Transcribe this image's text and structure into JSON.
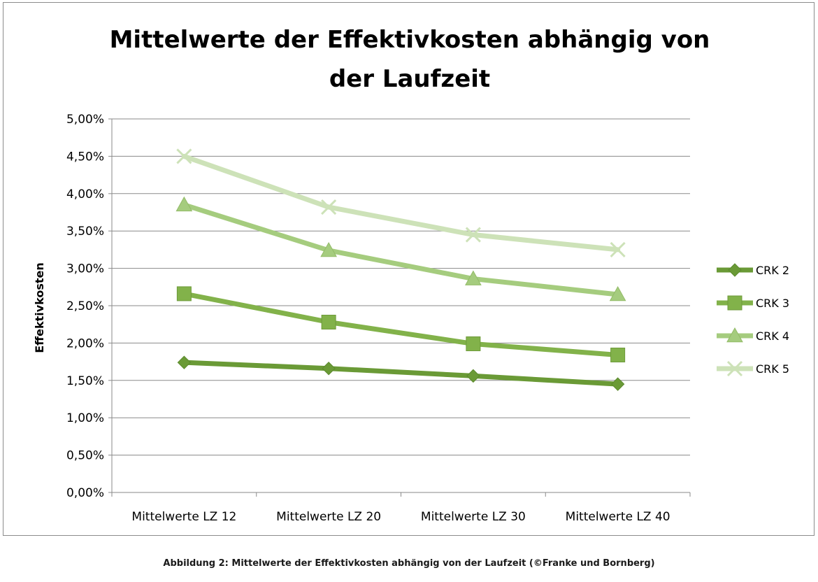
{
  "chart_data": {
    "type": "line",
    "title": "Mittelwerte der Effektivkosten abhängig von der Laufzeit",
    "title_lines": [
      "Mittelwerte der Effektivkosten abhängig von",
      "der Laufzeit"
    ],
    "xlabel": "",
    "ylabel": "Effektivkosten",
    "categories": [
      "Mittelwerte LZ 12",
      "Mittelwerte LZ 20",
      "Mittelwerte LZ 30",
      "Mittelwerte LZ 40"
    ],
    "ylim": [
      0,
      0.05
    ],
    "yticks": [
      0,
      0.005,
      0.01,
      0.015,
      0.02,
      0.025,
      0.03,
      0.035,
      0.04,
      0.045,
      0.05
    ],
    "ytick_labels": [
      "0,00%",
      "0,50%",
      "1,00%",
      "1,50%",
      "2,00%",
      "2,50%",
      "3,00%",
      "3,50%",
      "4,00%",
      "4,50%",
      "5,00%"
    ],
    "grid": true,
    "legend_position": "right",
    "series": [
      {
        "name": "CRK 2",
        "values": [
          0.0174,
          0.0166,
          0.0156,
          0.0145
        ],
        "color": "#6a9a36",
        "marker": "diamond"
      },
      {
        "name": "CRK 3",
        "values": [
          0.0266,
          0.0228,
          0.0199,
          0.0184
        ],
        "color": "#82b24a",
        "marker": "square"
      },
      {
        "name": "CRK 4",
        "values": [
          0.0385,
          0.0324,
          0.0286,
          0.0265
        ],
        "color": "#a5cc7e",
        "marker": "triangle"
      },
      {
        "name": "CRK 5",
        "values": [
          0.045,
          0.0382,
          0.0345,
          0.0325
        ],
        "color": "#cde2b8",
        "marker": "x"
      }
    ]
  },
  "caption": "Abbildung 2: Mittelwerte der Effektivkosten abhängig von der Laufzeit (©Franke und Bornberg)"
}
